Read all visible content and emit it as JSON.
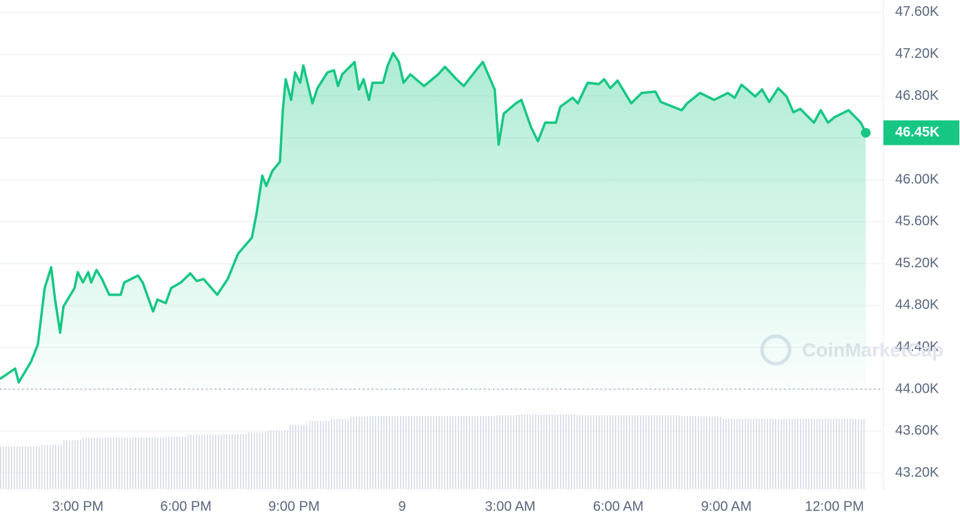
{
  "chart_data": {
    "type": "area",
    "series": [
      {
        "name": "Price",
        "color": "#16c784",
        "x": [
          12.84,
          13.26,
          13.36,
          13.7,
          13.89,
          14.08,
          14.26,
          14.37,
          14.51,
          14.6,
          14.91,
          15.0,
          15.14,
          15.29,
          15.37,
          15.52,
          15.67,
          15.87,
          16.19,
          16.29,
          16.67,
          16.8,
          17.09,
          17.21,
          17.44,
          17.59,
          17.86,
          18.12,
          18.3,
          18.49,
          18.87,
          19.16,
          19.45,
          19.83,
          19.96,
          20.12,
          20.23,
          20.4,
          20.61,
          20.69,
          20.77,
          20.92,
          21.03,
          21.17,
          21.26,
          21.51,
          21.65,
          21.93,
          22.11,
          22.22,
          22.34,
          22.68,
          22.8,
          22.93,
          23.08,
          23.18,
          23.47,
          23.6,
          23.75,
          23.91,
          24.04,
          24.23,
          24.61,
          25.0,
          25.19,
          25.51,
          25.71,
          26.05,
          26.24,
          26.57,
          26.68,
          26.82,
          27.16,
          27.31,
          27.58,
          27.77,
          27.97,
          28.27,
          28.39,
          28.73,
          28.88,
          29.15,
          29.46,
          29.61,
          29.78,
          29.98,
          30.36,
          30.65,
          31.03,
          31.18,
          31.76,
          31.91,
          32.27,
          32.66,
          33.04,
          33.23,
          33.42,
          33.8,
          33.99,
          34.19,
          34.44,
          34.67,
          34.86,
          35.05,
          35.43,
          35.62,
          35.82,
          36.01,
          36.39,
          36.73,
          36.87
        ],
        "values": [
          44099,
          44197,
          44066,
          44263,
          44428,
          44967,
          45165,
          44856,
          44540,
          44790,
          44967,
          45119,
          45020,
          45119,
          45020,
          45139,
          45053,
          44902,
          44902,
          45020,
          45086,
          45020,
          44744,
          44856,
          44823,
          44967,
          45020,
          45106,
          45033,
          45053,
          44902,
          45053,
          45296,
          45448,
          45678,
          46040,
          45941,
          46086,
          46172,
          46665,
          46961,
          46764,
          47027,
          46928,
          47093,
          46731,
          46876,
          47027,
          47047,
          46896,
          47008,
          47126,
          46863,
          46961,
          46764,
          46928,
          46928,
          47093,
          47212,
          47126,
          46928,
          47008,
          46896,
          47008,
          47080,
          46961,
          46896,
          47047,
          47126,
          46863,
          46336,
          46632,
          46731,
          46764,
          46501,
          46369,
          46547,
          46547,
          46698,
          46784,
          46731,
          46928,
          46915,
          46961,
          46876,
          46948,
          46731,
          46830,
          46843,
          46744,
          46665,
          46731,
          46830,
          46764,
          46830,
          46784,
          46909,
          46797,
          46863,
          46744,
          46876,
          46797,
          46646,
          46678,
          46547,
          46665,
          46547,
          46600,
          46665,
          46547,
          46450
        ]
      }
    ],
    "volume": {
      "color": "#cfd6e4",
      "values": [
        62,
        62,
        64,
        71,
        74,
        75,
        75,
        75,
        76,
        79,
        79,
        80,
        82,
        85,
        93,
        99,
        102,
        105,
        106,
        106,
        106,
        106,
        106,
        106,
        107,
        108,
        108,
        108,
        107,
        107,
        107,
        107,
        107,
        106,
        105,
        102,
        102,
        102,
        102,
        102,
        102,
        102
      ]
    },
    "current_price": {
      "value": 46450,
      "label": "46.45K"
    },
    "baseline": 44000,
    "watermark": "CoinMarketCap",
    "xlim": [
      12.84,
      37.34
    ],
    "xticks": [
      {
        "value": 15,
        "label": "3:00 PM"
      },
      {
        "value": 18,
        "label": "6:00 PM"
      },
      {
        "value": 21,
        "label": "9:00 PM"
      },
      {
        "value": 24,
        "label": "9"
      },
      {
        "value": 27,
        "label": "3:00 AM"
      },
      {
        "value": 30,
        "label": "6:00 AM"
      },
      {
        "value": 33,
        "label": "9:00 AM"
      },
      {
        "value": 36,
        "label": "12:00 PM"
      }
    ],
    "ylim": [
      43046,
      47718
    ],
    "yticks": [
      {
        "value": 43200,
        "label": "43.20K"
      },
      {
        "value": 43600,
        "label": "43.60K"
      },
      {
        "value": 44000,
        "label": "44.00K"
      },
      {
        "value": 44400,
        "label": "44.40K"
      },
      {
        "value": 44800,
        "label": "44.80K"
      },
      {
        "value": 45200,
        "label": "45.20K"
      },
      {
        "value": 45600,
        "label": "45.60K"
      },
      {
        "value": 46000,
        "label": "46.00K"
      },
      {
        "value": 46400,
        "label": "46.40K"
      },
      {
        "value": 46800,
        "label": "46.80K"
      },
      {
        "value": 47200,
        "label": "47.20K"
      },
      {
        "value": 47600,
        "label": "47.60K"
      }
    ],
    "grid": true
  }
}
